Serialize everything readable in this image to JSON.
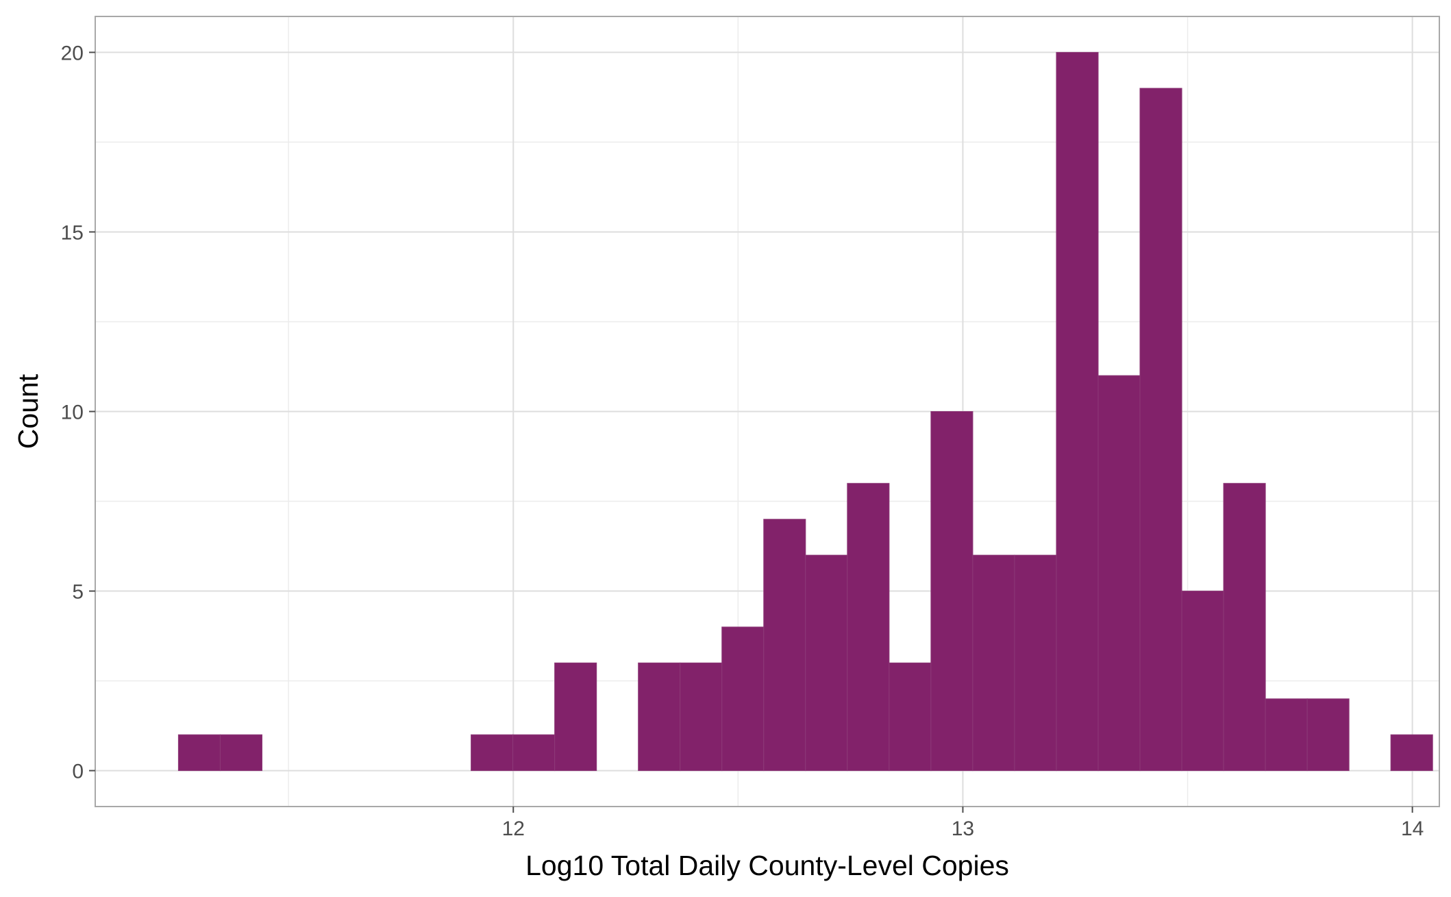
{
  "chart_data": {
    "type": "bar",
    "subtype": "histogram",
    "title": "",
    "xlabel": "Log10 Total Daily County-Level Copies",
    "ylabel": "Count",
    "xlim": [
      11.07,
      14.06
    ],
    "ylim": [
      -1,
      21
    ],
    "xticks": [
      12,
      13,
      14
    ],
    "xtick_labels": [
      "12",
      "13",
      "14"
    ],
    "yticks": [
      0,
      5,
      10,
      15,
      20
    ],
    "ytick_labels": [
      "0",
      "5",
      "10",
      "15",
      "20"
    ],
    "bin_width": 0.0931,
    "bins": [
      {
        "start": 11.255,
        "count": 1
      },
      {
        "start": 11.348,
        "count": 1
      },
      {
        "start": 11.441,
        "count": 0
      },
      {
        "start": 11.534,
        "count": 0
      },
      {
        "start": 11.627,
        "count": 0
      },
      {
        "start": 11.72,
        "count": 0
      },
      {
        "start": 11.813,
        "count": 0
      },
      {
        "start": 11.906,
        "count": 1
      },
      {
        "start": 11.999,
        "count": 1
      },
      {
        "start": 12.092,
        "count": 3
      },
      {
        "start": 12.185,
        "count": 0
      },
      {
        "start": 12.278,
        "count": 3
      },
      {
        "start": 12.371,
        "count": 3
      },
      {
        "start": 12.464,
        "count": 4
      },
      {
        "start": 12.557,
        "count": 7
      },
      {
        "start": 12.65,
        "count": 6
      },
      {
        "start": 12.743,
        "count": 8
      },
      {
        "start": 12.836,
        "count": 3
      },
      {
        "start": 12.929,
        "count": 10
      },
      {
        "start": 13.022,
        "count": 6
      },
      {
        "start": 13.115,
        "count": 6
      },
      {
        "start": 13.208,
        "count": 20
      },
      {
        "start": 13.301,
        "count": 11
      },
      {
        "start": 13.394,
        "count": 19
      },
      {
        "start": 13.487,
        "count": 5
      },
      {
        "start": 13.58,
        "count": 8
      },
      {
        "start": 13.673,
        "count": 2
      },
      {
        "start": 13.766,
        "count": 2
      },
      {
        "start": 13.859,
        "count": 0
      },
      {
        "start": 13.952,
        "count": 1
      }
    ],
    "grid": true,
    "legend": "none",
    "colors": {
      "bar_fill": "#82226a",
      "bar_outline": "#8d3a78",
      "grid_major": "#dedede",
      "grid_minor": "#ececec",
      "panel_border": "#a8a8a8",
      "tick_text": "#4d4d4d",
      "axis_title_text": "#000000"
    }
  }
}
